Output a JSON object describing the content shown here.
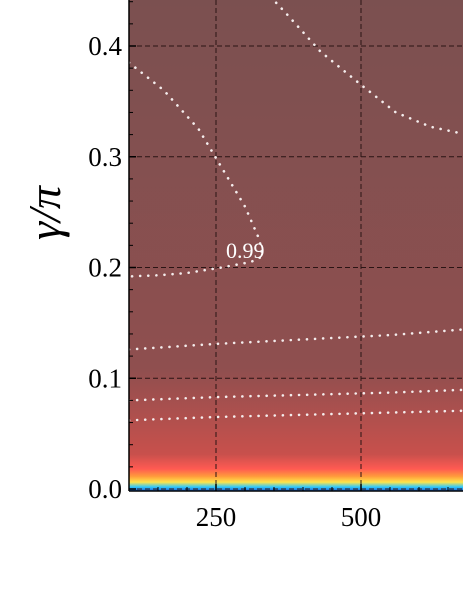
{
  "chart_data": {
    "type": "heatmap",
    "title": "",
    "xlabel": "",
    "ylabel": "γ/π",
    "xlim": [
      100,
      700
    ],
    "ylim": [
      0.0,
      0.45
    ],
    "x_ticks": [
      250,
      500
    ],
    "x_tick_labels": [
      "250",
      "500"
    ],
    "y_ticks": [
      0.0,
      0.1,
      0.2,
      0.3,
      0.4
    ],
    "y_tick_labels": [
      "0.0",
      "0.1",
      "0.2",
      "0.3",
      "0.4"
    ],
    "grid": true,
    "colormap": [
      "#1f5fd6",
      "#2ec8ff",
      "#ffe44a",
      "#ff9a3c",
      "#ff5a52",
      "#c8504c",
      "#8f4f4f",
      "#7b5050"
    ],
    "contours": [
      {
        "label": "0.99",
        "points": [
          [
            100,
            0.385
          ],
          [
            160,
            0.36
          ],
          [
            220,
            0.325
          ],
          [
            260,
            0.29
          ],
          [
            300,
            0.255
          ],
          [
            325,
            0.225
          ],
          [
            330,
            0.21
          ],
          [
            310,
            0.205
          ],
          [
            260,
            0.2
          ],
          [
            200,
            0.195
          ],
          [
            150,
            0.193
          ],
          [
            100,
            0.192
          ]
        ]
      },
      {
        "label": "",
        "points": [
          [
            325,
            0.455
          ],
          [
            370,
            0.43
          ],
          [
            430,
            0.395
          ],
          [
            500,
            0.365
          ],
          [
            560,
            0.34
          ],
          [
            620,
            0.327
          ],
          [
            700,
            0.318
          ]
        ]
      },
      {
        "label": "",
        "points": [
          [
            100,
            0.126
          ],
          [
            250,
            0.131
          ],
          [
            400,
            0.135
          ],
          [
            550,
            0.139
          ],
          [
            700,
            0.145
          ]
        ]
      },
      {
        "label": "",
        "points": [
          [
            100,
            0.08
          ],
          [
            250,
            0.083
          ],
          [
            400,
            0.085
          ],
          [
            550,
            0.087
          ],
          [
            700,
            0.09
          ]
        ]
      },
      {
        "label": "",
        "points": [
          [
            100,
            0.062
          ],
          [
            250,
            0.065
          ],
          [
            400,
            0.067
          ],
          [
            550,
            0.069
          ],
          [
            700,
            0.071
          ]
        ]
      }
    ]
  }
}
